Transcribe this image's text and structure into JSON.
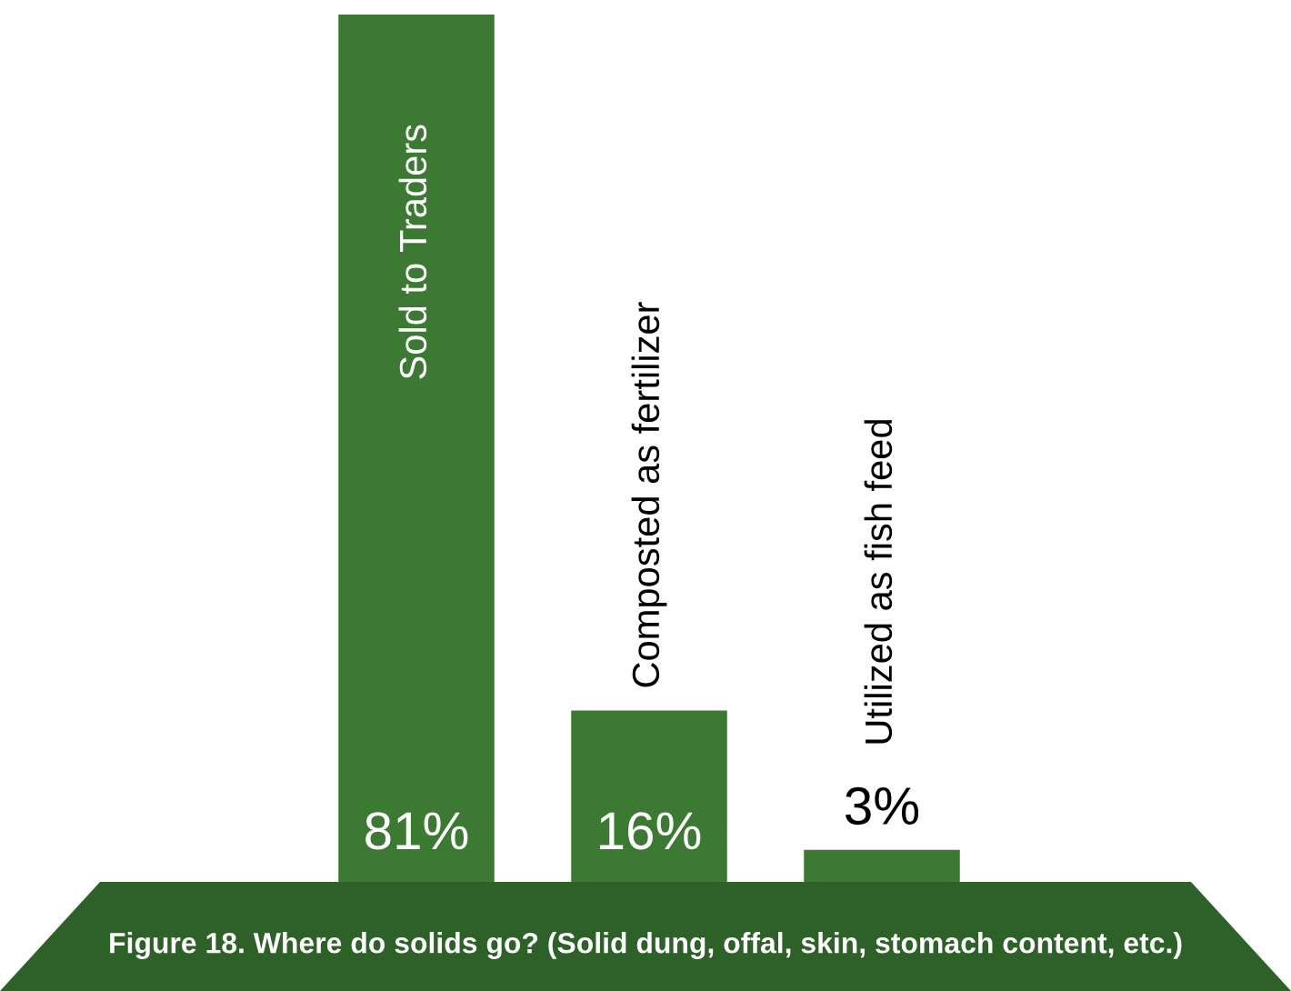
{
  "chart_data": {
    "type": "bar",
    "categories": [
      "Sold to Traders",
      "Composted as fertilizer",
      "Utilized as fish feed"
    ],
    "values": [
      81,
      16,
      3
    ],
    "value_labels": [
      "81%",
      "16%",
      "3%"
    ],
    "color": "#3c7a34",
    "annotations": [
      "Figure 18. Where do solids go? (Solid dung, offal, skin, stomach content, etc.)"
    ],
    "legend": false
  }
}
